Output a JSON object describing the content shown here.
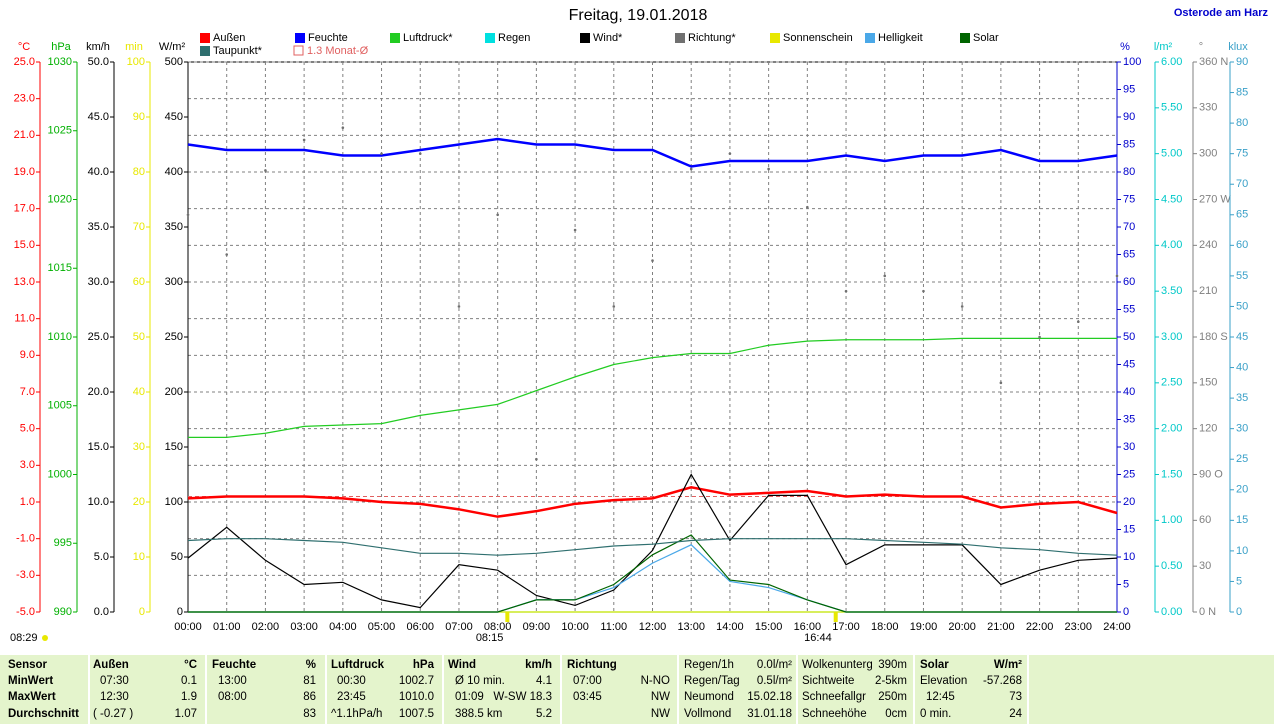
{
  "chart_data": {
    "type": "line",
    "title": "Freitag, 19.01.2018",
    "location": "Osterode am Harz",
    "corner_label": "08:29",
    "grid": true,
    "x": [
      0,
      1,
      2,
      3,
      4,
      5,
      6,
      7,
      8,
      9,
      10,
      11,
      12,
      13,
      14,
      15,
      16,
      17,
      18,
      19,
      20,
      21,
      22,
      23,
      24
    ],
    "xlim": [
      0,
      24
    ],
    "xticks": [
      {
        "value": 0,
        "label": "00:00"
      },
      {
        "value": 1,
        "label": "01:00"
      },
      {
        "value": 2,
        "label": "02:00"
      },
      {
        "value": 3,
        "label": "03:00"
      },
      {
        "value": 4,
        "label": "04:00"
      },
      {
        "value": 5,
        "label": "05:00"
      },
      {
        "value": 6,
        "label": "06:00"
      },
      {
        "value": 7,
        "label": "07:00"
      },
      {
        "value": 8,
        "label": "08:00"
      },
      {
        "value": 9,
        "label": "09:00"
      },
      {
        "value": 10,
        "label": "10:00"
      },
      {
        "value": 11,
        "label": "11:00"
      },
      {
        "value": 12,
        "label": "12:00"
      },
      {
        "value": 13,
        "label": "13:00"
      },
      {
        "value": 14,
        "label": "14:00"
      },
      {
        "value": 15,
        "label": "15:00"
      },
      {
        "value": 16,
        "label": "16:00"
      },
      {
        "value": 17,
        "label": "17:00"
      },
      {
        "value": 18,
        "label": "18:00"
      },
      {
        "value": 19,
        "label": "19:00"
      },
      {
        "value": 20,
        "label": "20:00"
      },
      {
        "value": 21,
        "label": "21:00"
      },
      {
        "value": 22,
        "label": "22:00"
      },
      {
        "value": 23,
        "label": "23:00"
      },
      {
        "value": 24,
        "label": "24:00"
      }
    ],
    "axes": [
      {
        "unit": "°C",
        "side": "left",
        "color": "#ff0000",
        "ylim": [
          -5,
          25
        ],
        "yticks": [
          {
            "value": -5,
            "label": "-5.0"
          },
          {
            "value": -3,
            "label": "-3.0"
          },
          {
            "value": -1,
            "label": "-1.0"
          },
          {
            "value": 1,
            "label": "1.0"
          },
          {
            "value": 3,
            "label": "3.0"
          },
          {
            "value": 5,
            "label": "5.0"
          },
          {
            "value": 7,
            "label": "7.0"
          },
          {
            "value": 9,
            "label": "9.0"
          },
          {
            "value": 11,
            "label": "11.0"
          },
          {
            "value": 13,
            "label": "13.0"
          },
          {
            "value": 15,
            "label": "15.0"
          },
          {
            "value": 17,
            "label": "17.0"
          },
          {
            "value": 19,
            "label": "19.0"
          },
          {
            "value": 21,
            "label": "21.0"
          },
          {
            "value": 23,
            "label": "23.0"
          },
          {
            "value": 25,
            "label": "25.0"
          }
        ]
      },
      {
        "unit": "hPa",
        "side": "left",
        "color": "#00b000",
        "ylim": [
          990,
          1030
        ],
        "yticks": [
          990,
          995,
          1000,
          1005,
          1010,
          1015,
          1020,
          1025,
          1030
        ]
      },
      {
        "unit": "km/h",
        "side": "left",
        "color": "#000000",
        "ylim": [
          0,
          50
        ],
        "yticks": [
          {
            "value": 0,
            "label": "0.0"
          },
          {
            "value": 5,
            "label": "5.0"
          },
          {
            "value": 10,
            "label": "10.0"
          },
          {
            "value": 15,
            "label": "15.0"
          },
          {
            "value": 20,
            "label": "20.0"
          },
          {
            "value": 25,
            "label": "25.0"
          },
          {
            "value": 30,
            "label": "30.0"
          },
          {
            "value": 35,
            "label": "35.0"
          },
          {
            "value": 40,
            "label": "40.0"
          },
          {
            "value": 45,
            "label": "45.0"
          },
          {
            "value": 50,
            "label": "50.0"
          }
        ]
      },
      {
        "unit": "min",
        "side": "left",
        "color": "#e8e800",
        "ylim": [
          0,
          100
        ],
        "yticks": [
          0,
          10,
          20,
          30,
          40,
          50,
          60,
          70,
          80,
          90,
          100
        ]
      },
      {
        "unit": "W/m²",
        "side": "left",
        "color": "#000000",
        "ylim": [
          0,
          500
        ],
        "yticks": [
          0,
          50,
          100,
          150,
          200,
          250,
          300,
          350,
          400,
          450,
          500
        ]
      },
      {
        "unit": "%",
        "side": "right",
        "color": "#0000cc",
        "ylim": [
          0,
          100
        ],
        "yticks": [
          0,
          5,
          10,
          15,
          20,
          25,
          30,
          35,
          40,
          45,
          50,
          55,
          60,
          65,
          70,
          75,
          80,
          85,
          90,
          95,
          100
        ]
      },
      {
        "unit": "l/m²",
        "side": "right",
        "color": "#00c8c8",
        "ylim": [
          0,
          6
        ],
        "yticks": [
          {
            "value": 0,
            "label": "0.00"
          },
          {
            "value": 0.5,
            "label": "0.50"
          },
          {
            "value": 1,
            "label": "1.00"
          },
          {
            "value": 1.5,
            "label": "1.50"
          },
          {
            "value": 2,
            "label": "2.00"
          },
          {
            "value": 2.5,
            "label": "2.50"
          },
          {
            "value": 3,
            "label": "3.00"
          },
          {
            "value": 3.5,
            "label": "3.50"
          },
          {
            "value": 4,
            "label": "4.00"
          },
          {
            "value": 4.5,
            "label": "4.50"
          },
          {
            "value": 5,
            "label": "5.00"
          },
          {
            "value": 5.5,
            "label": "5.50"
          },
          {
            "value": 6,
            "label": "6.00"
          }
        ]
      },
      {
        "unit": "°",
        "side": "right",
        "color": "#808080",
        "ylim": [
          0,
          360
        ],
        "yticks": [
          {
            "value": 0,
            "label": "0 N"
          },
          30,
          60,
          {
            "value": 90,
            "label": "90 O"
          },
          120,
          150,
          {
            "value": 180,
            "label": "180 S"
          },
          210,
          240,
          {
            "value": 270,
            "label": "270 W"
          },
          300,
          330,
          {
            "value": 360,
            "label": "360 N"
          }
        ]
      },
      {
        "unit": "klux",
        "side": "right",
        "color": "#3aa0c8",
        "ylim": [
          0,
          90
        ],
        "yticks": [
          0,
          5,
          10,
          15,
          20,
          25,
          30,
          35,
          40,
          45,
          50,
          55,
          60,
          65,
          70,
          75,
          80,
          85,
          90
        ]
      }
    ],
    "series": [
      {
        "name": "Außen",
        "color": "#ff0000",
        "axis": "°C",
        "values": [
          1.2,
          1.3,
          1.3,
          1.3,
          1.2,
          1.0,
          0.9,
          0.6,
          0.2,
          0.5,
          0.9,
          1.1,
          1.2,
          1.8,
          1.4,
          1.5,
          1.6,
          1.3,
          1.4,
          1.3,
          1.3,
          0.7,
          0.9,
          1.0,
          0.4
        ]
      },
      {
        "name": "Feuchte",
        "color": "#0000ff",
        "axis": "%",
        "values": [
          85,
          84,
          84,
          84,
          83,
          83,
          84,
          85,
          86,
          85,
          85,
          84,
          84,
          81,
          82,
          82,
          82,
          83,
          82,
          83,
          83,
          84,
          82,
          82,
          83
        ]
      },
      {
        "name": "Luftdruck*",
        "color": "#22cc22",
        "axis": "hPa",
        "values": [
          1002.7,
          1002.7,
          1003.0,
          1003.5,
          1003.6,
          1003.7,
          1004.3,
          1004.7,
          1005.1,
          1006.1,
          1007.1,
          1008.0,
          1008.5,
          1008.8,
          1008.8,
          1009.4,
          1009.7,
          1009.8,
          1009.8,
          1009.8,
          1009.9,
          1009.9,
          1009.9,
          1009.9,
          1009.9
        ]
      },
      {
        "name": "Regen",
        "color": "#00e0e0",
        "axis": "l/m²",
        "values": [
          0,
          0,
          0,
          0,
          0,
          0,
          0,
          0,
          0,
          0,
          0,
          0,
          0,
          0,
          0,
          0,
          0,
          0,
          0,
          0,
          0,
          0,
          0,
          0,
          0
        ]
      },
      {
        "name": "Wind*",
        "color": "#000000",
        "axis": "km/h",
        "values": [
          4.9,
          7.7,
          4.7,
          2.5,
          2.7,
          1.1,
          0.4,
          4.3,
          3.8,
          1.5,
          0.6,
          2.0,
          5.6,
          12.5,
          6.5,
          10.6,
          10.6,
          4.3,
          6.1,
          6.1,
          6.1,
          2.5,
          3.8,
          4.7,
          4.9
        ]
      },
      {
        "name": "Richtung*",
        "color": "#707070",
        "axis": "°",
        "dots": true,
        "values": [
          260,
          234,
          289,
          309,
          317,
          300,
          300,
          200,
          260,
          100,
          250,
          200,
          230,
          290,
          300,
          290,
          265,
          210,
          220,
          210,
          200,
          150,
          180,
          190,
          220
        ]
      },
      {
        "name": "Sonnenschein",
        "color": "#e8e800",
        "axis": "min",
        "values": [
          0,
          0,
          0,
          0,
          0,
          0,
          0,
          0,
          0,
          0,
          0,
          0,
          0,
          0,
          0,
          0,
          0,
          0,
          0,
          0,
          0,
          0,
          0,
          0,
          0
        ]
      },
      {
        "name": "Helligkeit",
        "color": "#4aa8e8",
        "axis": "klux",
        "values": [
          0,
          0,
          0,
          0,
          0,
          0,
          0,
          0,
          0,
          2,
          2,
          4,
          8,
          11,
          5,
          4,
          2,
          0,
          0,
          0,
          0,
          0,
          0,
          0,
          0
        ]
      },
      {
        "name": "Solar",
        "color": "#006400",
        "axis": "W/m²",
        "values": [
          0,
          0,
          0,
          0,
          0,
          0,
          0,
          0,
          0,
          11,
          11,
          25,
          52,
          70,
          29,
          25,
          11,
          0,
          0,
          0,
          0,
          0,
          0,
          0,
          0
        ]
      },
      {
        "name": "Taupunkt*",
        "color": "#2f6f6f",
        "axis": "°C",
        "values": [
          -1.1,
          -1.0,
          -1.0,
          -1.1,
          -1.2,
          -1.5,
          -1.8,
          -1.8,
          -1.9,
          -1.8,
          -1.6,
          -1.4,
          -1.3,
          -1.1,
          -1.0,
          -1.0,
          -1.0,
          -1.0,
          -1.1,
          -1.2,
          -1.3,
          -1.5,
          -1.6,
          -1.8,
          -1.9
        ]
      }
    ],
    "reference": {
      "label": "1.3 Monat-Ø",
      "value": 1.3,
      "axis": "°C",
      "color": "#e06060"
    },
    "sun": [
      {
        "label": "08:15",
        "value": 8.25
      },
      {
        "label": "16:44",
        "value": 16.733
      }
    ]
  },
  "table": {
    "rows": [
      [
        "Sensor",
        "Außen",
        "°C",
        "Feuchte",
        "%",
        "Luftdruck",
        "hPa",
        "Wind",
        "km/h",
        "Richtung",
        "Regen/1h",
        "0.0l/m²",
        "Wolkenunterg",
        "390m",
        "Solar",
        "W/m²"
      ],
      [
        "MinWert",
        "07:30",
        "0.1",
        "13:00",
        "81",
        "00:30",
        "1002.7",
        "Ø 10 min.",
        "4.1",
        "07:00",
        "N-NO",
        "Regen/Tag",
        "0.5l/m²",
        "Sichtweite",
        "2-5km",
        "Elevation",
        "-57.268"
      ],
      [
        "MaxWert",
        "12:30",
        "1.9",
        "08:00",
        "86",
        "23:45",
        "1010.0",
        "01:09",
        "W-SW 18.3",
        "03:45",
        "NW",
        "Neumond",
        "15.02.18",
        "Schneefallgr",
        "250m",
        "12:45",
        "73"
      ],
      [
        "Durchschnitt",
        "( -0.27 )",
        "1.07",
        "83",
        "^1.1hPa/h",
        "1007.5",
        "388.5 km",
        "5.2",
        "NW",
        "Vollmond",
        "31.01.18",
        "Schneehöhe",
        "0cm",
        "0 min.",
        "24"
      ]
    ]
  }
}
